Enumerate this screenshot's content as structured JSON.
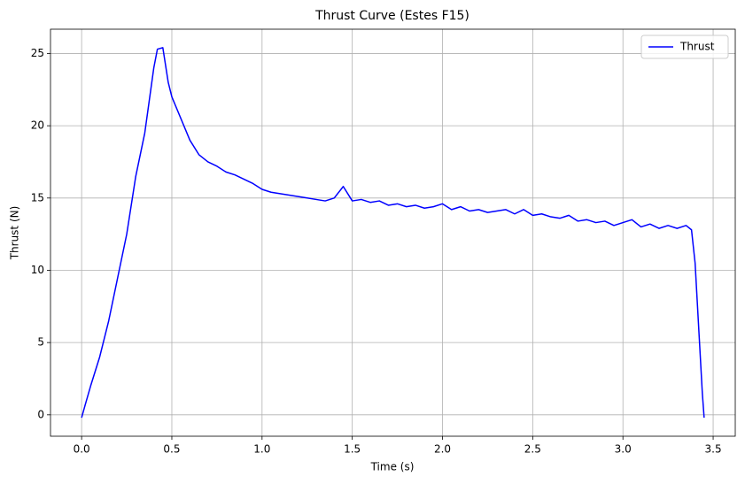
{
  "chart_data": {
    "type": "line",
    "title": "Thrust Curve (Estes F15)",
    "x_label": "Time (s)",
    "y_label": "Thrust (N)",
    "x": [
      0,
      0.02,
      0.05,
      0.1,
      0.15,
      0.2,
      0.25,
      0.3,
      0.35,
      0.4,
      0.42,
      0.45,
      0.48,
      0.5,
      0.55,
      0.6,
      0.65,
      0.7,
      0.75,
      0.8,
      0.85,
      0.9,
      0.95,
      1.0,
      1.05,
      1.1,
      1.15,
      1.2,
      1.25,
      1.3,
      1.35,
      1.4,
      1.45,
      1.5,
      1.55,
      1.6,
      1.65,
      1.7,
      1.75,
      1.8,
      1.85,
      1.9,
      1.95,
      2.0,
      2.05,
      2.1,
      2.15,
      2.2,
      2.25,
      2.3,
      2.35,
      2.4,
      2.45,
      2.5,
      2.55,
      2.6,
      2.65,
      2.7,
      2.75,
      2.8,
      2.85,
      2.9,
      2.95,
      3.0,
      3.05,
      3.1,
      3.15,
      3.2,
      3.25,
      3.3,
      3.35,
      3.38,
      3.4,
      3.42,
      3.44,
      3.45
    ],
    "series": [
      {
        "name": "Thrust",
        "color": "#0000ff",
        "values": [
          -0.2,
          0.7,
          2.0,
          4.0,
          6.5,
          9.5,
          12.5,
          16.5,
          19.5,
          24.0,
          25.3,
          25.4,
          23.0,
          22.0,
          20.5,
          19.0,
          18.0,
          17.5,
          17.2,
          16.8,
          16.6,
          16.3,
          16.0,
          15.6,
          15.4,
          15.3,
          15.2,
          15.1,
          15.0,
          14.9,
          14.8,
          15.0,
          15.8,
          14.8,
          14.9,
          14.7,
          14.8,
          14.5,
          14.6,
          14.4,
          14.5,
          14.3,
          14.4,
          14.6,
          14.2,
          14.4,
          14.1,
          14.2,
          14.0,
          14.1,
          14.2,
          13.9,
          14.2,
          13.8,
          13.9,
          13.7,
          13.6,
          13.8,
          13.4,
          13.5,
          13.3,
          13.4,
          13.1,
          13.3,
          13.5,
          13.0,
          13.2,
          12.9,
          13.1,
          12.9,
          13.1,
          12.8,
          10.5,
          6.0,
          1.5,
          -0.2
        ]
      }
    ],
    "xlim": [
      -0.1725,
      3.6225
    ],
    "ylim": [
      -1.48,
      26.68
    ],
    "xticks": [
      {
        "value": 0,
        "label": "0.0"
      },
      0.5,
      {
        "value": 1,
        "label": "1.0"
      },
      1.5,
      {
        "value": 2,
        "label": "2.0"
      },
      2.5,
      {
        "value": 3,
        "label": "3.0"
      },
      3.5
    ],
    "yticks": [
      0,
      5,
      10,
      15,
      20,
      25
    ],
    "grid": true,
    "legend": "upper right"
  }
}
